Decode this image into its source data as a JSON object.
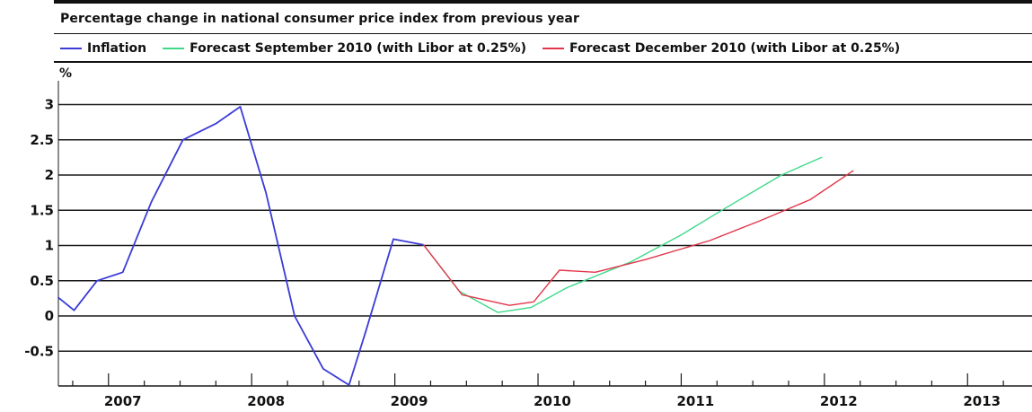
{
  "chart_data": {
    "type": "line",
    "title": "Percentage change in national consumer price index from previous year",
    "ylabel": "%",
    "xlabel": "",
    "ylim": [
      -1.0,
      3.25
    ],
    "xlim": [
      2006.65,
      2013.45
    ],
    "y_ticks": [
      3,
      2.5,
      2,
      1.5,
      1,
      0.5,
      0,
      -0.5
    ],
    "y_tick_labels": [
      "3",
      "2.5",
      "2",
      "1.5",
      "1",
      "0.5",
      "0",
      "-0.5"
    ],
    "x_ticks": [
      2007,
      2008,
      2009,
      2010,
      2011,
      2012,
      2013
    ],
    "x_tick_labels": [
      "2007",
      "2008",
      "2009",
      "2010",
      "2011",
      "2012",
      "2013"
    ],
    "grid": true,
    "legend_position": "top",
    "series": [
      {
        "name": "Inflation",
        "color": "#3b3bd6",
        "points": [
          [
            2006.65,
            0.26
          ],
          [
            2006.76,
            0.08
          ],
          [
            2006.92,
            0.5
          ],
          [
            2007.1,
            0.62
          ],
          [
            2007.3,
            1.62
          ],
          [
            2007.52,
            2.5
          ],
          [
            2007.75,
            2.73
          ],
          [
            2007.92,
            2.97
          ],
          [
            2008.1,
            1.75
          ],
          [
            2008.3,
            0.0
          ],
          [
            2008.5,
            -0.75
          ],
          [
            2008.68,
            -0.98
          ],
          [
            2008.8,
            -0.2
          ],
          [
            2008.99,
            1.09
          ],
          [
            2009.2,
            1.01
          ]
        ]
      },
      {
        "name": "Forecast September 2010 (with Libor at 0.25%)",
        "color": "#3fd98a",
        "points": [
          [
            2009.2,
            1.01
          ],
          [
            2009.45,
            0.35
          ],
          [
            2009.72,
            0.05
          ],
          [
            2009.95,
            0.12
          ],
          [
            2010.2,
            0.4
          ],
          [
            2010.65,
            0.77
          ],
          [
            2011.0,
            1.15
          ],
          [
            2011.3,
            1.52
          ],
          [
            2011.7,
            2.0
          ],
          [
            2011.98,
            2.25
          ]
        ]
      },
      {
        "name": "Forecast December 2010 (with Libor at 0.25%)",
        "color": "#e2364a",
        "points": [
          [
            2009.2,
            1.01
          ],
          [
            2009.47,
            0.3
          ],
          [
            2009.8,
            0.15
          ],
          [
            2009.97,
            0.2
          ],
          [
            2010.15,
            0.65
          ],
          [
            2010.4,
            0.62
          ],
          [
            2010.75,
            0.8
          ],
          [
            2011.2,
            1.07
          ],
          [
            2011.55,
            1.35
          ],
          [
            2011.9,
            1.65
          ],
          [
            2012.2,
            2.06
          ]
        ]
      }
    ]
  }
}
